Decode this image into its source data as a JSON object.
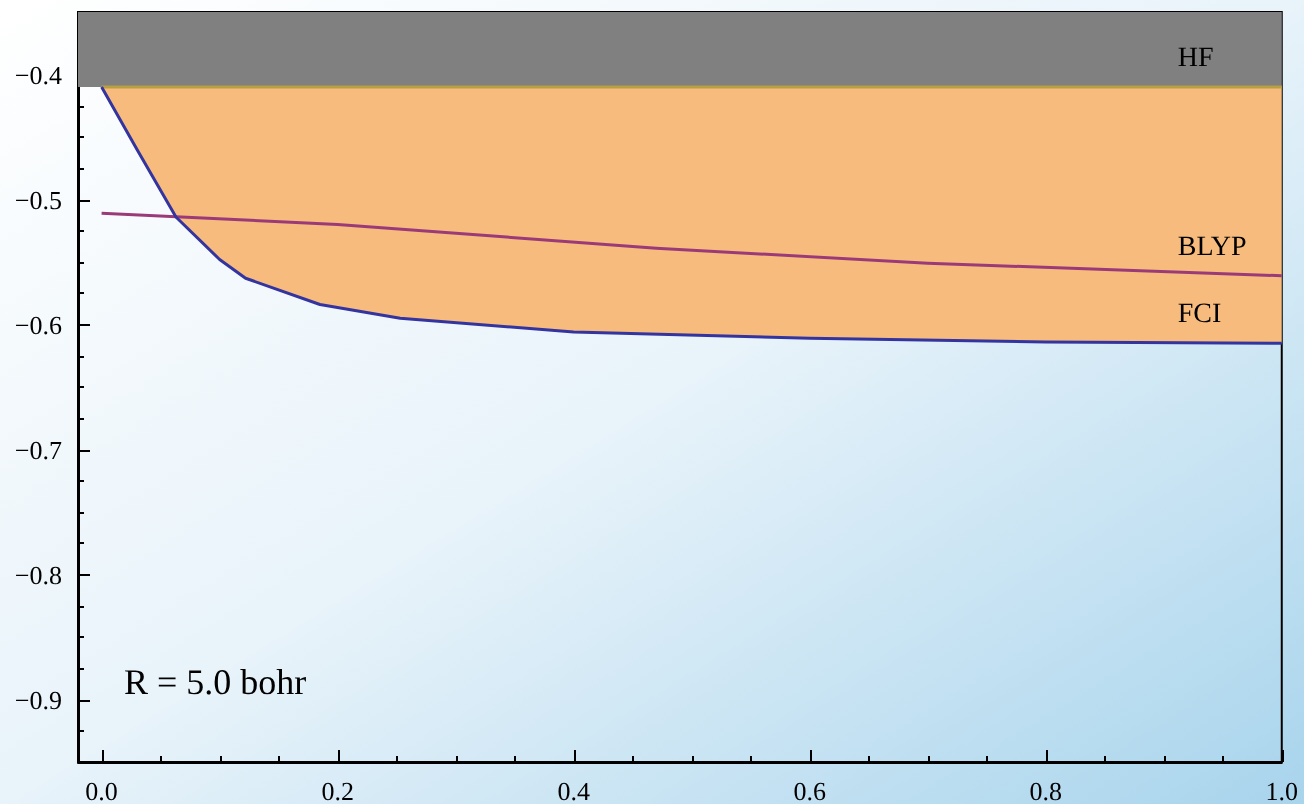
{
  "chart_data": {
    "type": "line",
    "annotations": [
      "R = 5.0 bohr"
    ],
    "xlim": [
      -0.02,
      1.0
    ],
    "xticks": [
      {
        "value": 0,
        "label": "0.0"
      },
      {
        "value": 0.2,
        "label": "0.2"
      },
      {
        "value": 0.4,
        "label": "0.4"
      },
      {
        "value": 0.6,
        "label": "0.6"
      },
      {
        "value": 0.8,
        "label": "0.8"
      },
      {
        "value": 1.0,
        "label": "1.0"
      }
    ],
    "ylim": [
      -0.95,
      -0.35
    ],
    "yticks": [
      {
        "value": -0.9,
        "label": "−0.9"
      },
      {
        "value": -0.8,
        "label": "−0.8"
      },
      {
        "value": -0.7,
        "label": "−0.7"
      },
      {
        "value": -0.6,
        "label": "−0.6"
      },
      {
        "value": -0.5,
        "label": "−0.5"
      },
      {
        "value": -0.4,
        "label": "−0.4"
      }
    ],
    "bands": [
      {
        "axis": "y",
        "from": -0.41,
        "to": -0.35,
        "color": "#808080"
      }
    ],
    "grid": false,
    "legend": false,
    "marker": "none",
    "line_style": "solid",
    "series": [
      {
        "name": "HF",
        "color": "#b8a040",
        "x": [
          0,
          0.03,
          0.063,
          0.1,
          0.122,
          0.185,
          0.253,
          0.4,
          0.6,
          0.8,
          1.0
        ],
        "values": [
          -0.41,
          -0.41,
          -0.41,
          -0.41,
          -0.41,
          -0.41,
          -0.41,
          -0.41,
          -0.41,
          -0.41,
          -0.41
        ],
        "lower": [
          -0.41,
          -0.46,
          -0.514,
          -0.548,
          -0.563,
          -0.584,
          -0.595,
          -0.606,
          -0.611,
          -0.614,
          -0.615
        ],
        "upper": [
          -0.41,
          -0.41,
          -0.41,
          -0.41,
          -0.41,
          -0.41,
          -0.41,
          -0.41,
          -0.41,
          -0.41,
          -0.41
        ]
      },
      {
        "name": "BLYP",
        "color": "#9b3a78",
        "x": [
          0,
          0.2,
          0.47,
          0.7,
          1.0
        ],
        "values": [
          -0.511,
          -0.52,
          -0.539,
          -0.551,
          -0.561
        ]
      },
      {
        "name": "FCI",
        "color": "#3434a0",
        "x": [
          0,
          0.03,
          0.063,
          0.1,
          0.122,
          0.185,
          0.253,
          0.4,
          0.6,
          0.8,
          1.0
        ],
        "values": [
          -0.41,
          -0.46,
          -0.514,
          -0.548,
          -0.563,
          -0.584,
          -0.595,
          -0.606,
          -0.611,
          -0.614,
          -0.615
        ]
      }
    ]
  }
}
